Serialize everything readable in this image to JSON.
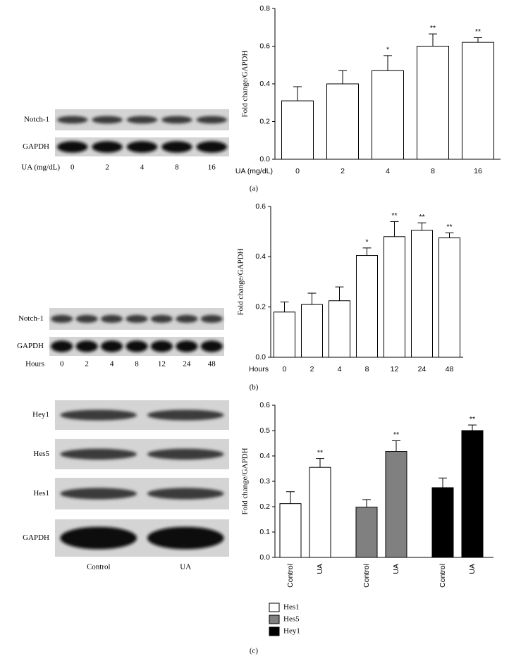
{
  "chart_data": [
    {
      "type": "bar",
      "panel": "(a)",
      "y_label": "Fold change/GAPDH",
      "x_label": "UA (mg/dL)",
      "categories": [
        "0",
        "2",
        "4",
        "8",
        "16"
      ],
      "values": [
        0.31,
        0.4,
        0.47,
        0.6,
        0.62
      ],
      "errors": [
        0.075,
        0.07,
        0.08,
        0.065,
        0.025
      ],
      "annotations": [
        null,
        null,
        "*",
        "**",
        "**"
      ],
      "color": "#ffffff",
      "ylim": [
        0,
        0.8
      ],
      "yticks": [
        {
          "value": 0,
          "label": "0.0"
        },
        0.2,
        0.4,
        0.6,
        0.8
      ],
      "blot": {
        "rows": [
          "Notch-1",
          "GAPDH"
        ]
      }
    },
    {
      "type": "bar",
      "panel": "(b)",
      "y_label": "Fold change/GAPDH",
      "x_label": "Hours",
      "categories": [
        "0",
        "2",
        "4",
        "8",
        "12",
        "24",
        "48"
      ],
      "values": [
        0.18,
        0.21,
        0.225,
        0.405,
        0.48,
        0.505,
        0.475
      ],
      "errors": [
        0.04,
        0.045,
        0.055,
        0.03,
        0.06,
        0.03,
        0.02
      ],
      "annotations": [
        null,
        null,
        null,
        "*",
        "**",
        "**",
        "**"
      ],
      "color": "#ffffff",
      "ylim": [
        0,
        0.6
      ],
      "yticks": [
        {
          "value": 0,
          "label": "0.0"
        },
        0.2,
        0.4,
        0.6
      ],
      "blot": {
        "rows": [
          "Notch-1",
          "GAPDH"
        ]
      }
    },
    {
      "type": "grouped_bar",
      "panel": "(c)",
      "y_label": "Fold change/GAPDH",
      "categories": [
        "Control",
        "UA"
      ],
      "series": [
        {
          "name": "Hes1",
          "color": "#ffffff",
          "values": [
            0.212,
            0.355
          ],
          "errors": [
            0.047,
            0.035
          ],
          "annotations": [
            null,
            "**"
          ]
        },
        {
          "name": "Hes5",
          "color": "#808080",
          "values": [
            0.198,
            0.418
          ],
          "errors": [
            0.03,
            0.042
          ],
          "annotations": [
            null,
            "**"
          ]
        },
        {
          "name": "Hey1",
          "color": "#000000",
          "values": [
            0.275,
            0.5
          ],
          "errors": [
            0.038,
            0.022
          ],
          "annotations": [
            null,
            "**"
          ]
        }
      ],
      "ylim": [
        0,
        0.6
      ],
      "yticks": [
        {
          "value": 0,
          "label": "0.0"
        },
        0.1,
        0.2,
        0.3,
        0.4,
        0.5,
        0.6
      ],
      "blot": {
        "rows": [
          "Hey1",
          "Hes5",
          "Hes1",
          "GAPDH"
        ]
      }
    }
  ]
}
